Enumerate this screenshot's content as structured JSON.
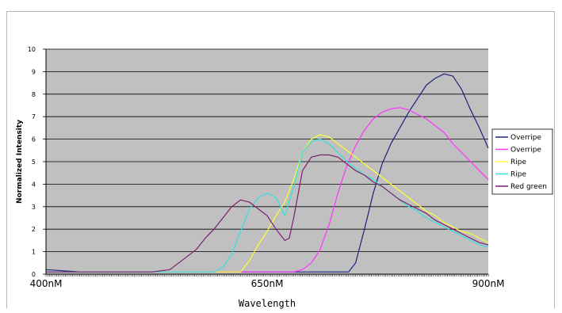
{
  "chart_data": {
    "type": "line",
    "xlabel": "Wavelength",
    "ylabel": "Normalized Intensity",
    "xlim": [
      400,
      900
    ],
    "ylim": [
      0,
      10
    ],
    "x_tick_labels": [
      {
        "value": 400,
        "label": "400nM"
      },
      {
        "value": 650,
        "label": "650nM"
      },
      {
        "value": 900,
        "label": "900nM"
      }
    ],
    "y_ticks": [
      0,
      1,
      2,
      3,
      4,
      5,
      6,
      7,
      8,
      9,
      10
    ],
    "y_tick_labels": [
      "0",
      "1",
      "2",
      "3",
      "4",
      "5",
      "6",
      "7",
      "8",
      "9",
      "10"
    ],
    "grid": true,
    "legend_position": "right",
    "plot_background": "#c0c0c0",
    "series": [
      {
        "name": "Overripe",
        "color": "#1a237e",
        "x": [
          400,
          440,
          480,
          520,
          560,
          600,
          640,
          680,
          710,
          730,
          742,
          750,
          760,
          770,
          780,
          790,
          800,
          810,
          820,
          830,
          840,
          850,
          860,
          870,
          880,
          890,
          900
        ],
        "y": [
          0.2,
          0.1,
          0.1,
          0.1,
          0.1,
          0.1,
          0.1,
          0.1,
          0.1,
          0.1,
          0.1,
          0.5,
          2.0,
          3.6,
          4.9,
          5.8,
          6.5,
          7.2,
          7.8,
          8.4,
          8.7,
          8.9,
          8.8,
          8.2,
          7.3,
          6.5,
          5.6
        ]
      },
      {
        "name": "Overripe",
        "color": "#ff33ff",
        "x": [
          400,
          440,
          480,
          520,
          560,
          600,
          640,
          680,
          690,
          700,
          710,
          720,
          730,
          740,
          750,
          760,
          770,
          780,
          790,
          800,
          810,
          820,
          830,
          840,
          850,
          860,
          870,
          880,
          890,
          900
        ],
        "y": [
          0.1,
          0.1,
          0.1,
          0.1,
          0.1,
          0.1,
          0.1,
          0.1,
          0.2,
          0.5,
          1.1,
          2.2,
          3.6,
          4.8,
          5.7,
          6.4,
          6.9,
          7.2,
          7.35,
          7.4,
          7.3,
          7.1,
          6.9,
          6.6,
          6.3,
          5.8,
          5.4,
          5.0,
          4.6,
          4.2
        ]
      },
      {
        "name": "Ripe",
        "color": "#ffff33",
        "x": [
          400,
          440,
          480,
          520,
          560,
          600,
          620,
          630,
          640,
          650,
          660,
          670,
          680,
          690,
          700,
          710,
          720,
          730,
          740,
          750,
          760,
          770,
          780,
          790,
          800,
          810,
          820,
          830,
          840,
          850,
          860,
          870,
          880,
          890,
          900
        ],
        "y": [
          0.1,
          0.1,
          0.1,
          0.1,
          0.1,
          0.1,
          0.1,
          0.6,
          1.3,
          1.9,
          2.6,
          3.2,
          4.2,
          5.4,
          6.0,
          6.2,
          6.1,
          5.8,
          5.5,
          5.2,
          4.9,
          4.6,
          4.3,
          4.0,
          3.7,
          3.4,
          3.1,
          2.8,
          2.6,
          2.3,
          2.1,
          1.9,
          1.8,
          1.6,
          1.4
        ]
      },
      {
        "name": "Ripe",
        "color": "#33e0e0",
        "x": [
          400,
          440,
          480,
          520,
          560,
          590,
          600,
          610,
          620,
          630,
          640,
          650,
          660,
          670,
          680,
          690,
          700,
          710,
          720,
          730,
          740,
          750,
          760,
          770,
          780,
          790,
          800,
          810,
          820,
          830,
          840,
          850,
          860,
          870,
          880,
          890,
          900
        ],
        "y": [
          0.1,
          0.1,
          0.1,
          0.1,
          0.1,
          0.1,
          0.3,
          0.9,
          1.9,
          2.9,
          3.4,
          3.6,
          3.4,
          2.6,
          3.9,
          5.4,
          5.9,
          6.0,
          5.8,
          5.4,
          5.0,
          4.7,
          4.4,
          4.2,
          3.9,
          3.6,
          3.3,
          3.0,
          2.8,
          2.5,
          2.3,
          2.1,
          1.9,
          1.7,
          1.5,
          1.3,
          1.2
        ]
      },
      {
        "name": "Red green",
        "color": "#7b1f6e",
        "x": [
          400,
          440,
          480,
          520,
          540,
          550,
          560,
          570,
          580,
          590,
          600,
          610,
          620,
          630,
          640,
          650,
          660,
          670,
          675,
          680,
          690,
          700,
          710,
          720,
          730,
          740,
          750,
          760,
          770,
          780,
          790,
          800,
          810,
          820,
          830,
          840,
          850,
          860,
          870,
          880,
          890,
          900
        ],
        "y": [
          0.1,
          0.1,
          0.1,
          0.1,
          0.2,
          0.5,
          0.8,
          1.1,
          1.6,
          2.0,
          2.5,
          3.0,
          3.3,
          3.2,
          2.9,
          2.6,
          2.0,
          1.5,
          1.6,
          2.5,
          4.6,
          5.2,
          5.3,
          5.3,
          5.2,
          4.9,
          4.6,
          4.4,
          4.1,
          3.9,
          3.6,
          3.3,
          3.1,
          2.9,
          2.7,
          2.4,
          2.2,
          2.0,
          1.8,
          1.6,
          1.4,
          1.3
        ]
      }
    ]
  },
  "legend": {
    "entries": [
      "Overripe",
      "Overripe",
      "Ripe",
      "Ripe",
      "Red green"
    ]
  }
}
